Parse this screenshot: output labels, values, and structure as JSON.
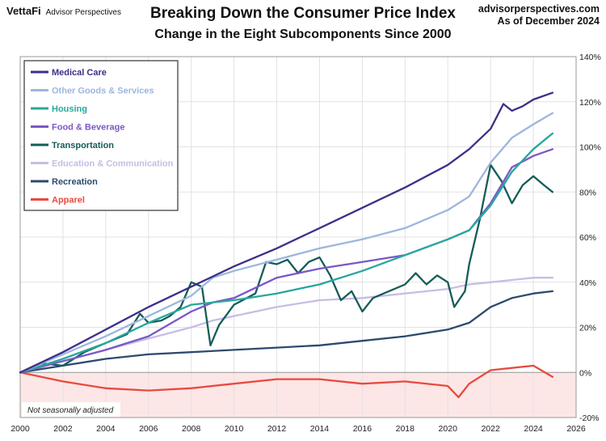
{
  "header": {
    "brand": "VettaFi",
    "brand_sub": "Advisor Perspectives",
    "title": "Breaking Down the Consumer Price Index",
    "subtitle": "Change in the Eight Subcomponents Since 2000",
    "site": "advisorperspectives.com",
    "asof": "As of December 2024"
  },
  "chart_data": {
    "type": "line",
    "title": "Breaking Down the Consumer Price Index",
    "subtitle": "Change in the Eight Subcomponents Since 2000",
    "xlim": [
      2000,
      2026
    ],
    "ylim": [
      -20,
      140
    ],
    "x_ticks": [
      2000,
      2002,
      2004,
      2006,
      2008,
      2010,
      2012,
      2014,
      2016,
      2018,
      2020,
      2022,
      2024,
      2026
    ],
    "y_ticks": [
      -20,
      0,
      20,
      40,
      60,
      80,
      100,
      120,
      140
    ],
    "y_tick_labels": [
      "-20%",
      "0%",
      "20%",
      "40%",
      "60%",
      "80%",
      "100%",
      "120%",
      "140%"
    ],
    "y_axis_side": "right",
    "grid": true,
    "legend_position": "top-left",
    "note": "Not seasonally adjusted",
    "series": [
      {
        "name": "Medical Care",
        "color": "#3d2f8a",
        "x": [
          2000,
          2002,
          2004,
          2006,
          2008,
          2010,
          2012,
          2014,
          2016,
          2018,
          2020,
          2021,
          2022,
          2022.6,
          2023,
          2023.5,
          2024,
          2024.9
        ],
        "values": [
          0,
          9,
          19,
          29,
          38,
          47,
          55,
          64,
          73,
          82,
          92,
          99,
          108,
          119,
          116,
          118,
          121,
          124
        ]
      },
      {
        "name": "Other Goods & Services",
        "color": "#9db6dd",
        "x": [
          2000,
          2002,
          2004,
          2006,
          2008,
          2009,
          2010,
          2012,
          2014,
          2016,
          2018,
          2020,
          2021,
          2022,
          2023,
          2024,
          2024.9
        ],
        "values": [
          0,
          8,
          16,
          25,
          34,
          42,
          45,
          50,
          55,
          59,
          64,
          72,
          78,
          93,
          104,
          110,
          115
        ]
      },
      {
        "name": "Housing",
        "color": "#28a79e",
        "x": [
          2000,
          2002,
          2004,
          2006,
          2008,
          2010,
          2012,
          2014,
          2016,
          2018,
          2020,
          2021,
          2022,
          2023,
          2024,
          2024.9
        ],
        "values": [
          0,
          6,
          13,
          22,
          30,
          32,
          35,
          39,
          45,
          52,
          59,
          63,
          74,
          89,
          99,
          106
        ]
      },
      {
        "name": "Food & Beverage",
        "color": "#7b58c6",
        "x": [
          2000,
          2002,
          2004,
          2006,
          2008,
          2009,
          2010,
          2012,
          2014,
          2016,
          2018,
          2020,
          2021,
          2022,
          2023,
          2024,
          2024.9
        ],
        "values": [
          0,
          5,
          10,
          16,
          27,
          31,
          33,
          42,
          46,
          49,
          52,
          59,
          63,
          75,
          91,
          96,
          99
        ]
      },
      {
        "name": "Transportation",
        "color": "#155c58",
        "x": [
          2000,
          2001,
          2002,
          2003,
          2004,
          2005,
          2005.6,
          2006,
          2006.6,
          2007,
          2007.5,
          2008,
          2008.5,
          2008.9,
          2009.3,
          2010,
          2011,
          2011.5,
          2012,
          2012.5,
          2013,
          2013.5,
          2014,
          2014.5,
          2015,
          2015.5,
          2016,
          2016.5,
          2017,
          2018,
          2018.5,
          2019,
          2019.5,
          2020,
          2020.3,
          2020.8,
          2021,
          2021.5,
          2022,
          2022.5,
          2023,
          2023.5,
          2024,
          2024.5,
          2024.9
        ],
        "values": [
          0,
          4,
          3,
          9,
          13,
          17,
          26,
          22,
          23,
          25,
          29,
          40,
          38,
          12,
          21,
          30,
          35,
          49,
          48,
          50,
          44,
          49,
          51,
          43,
          32,
          36,
          27,
          33,
          35,
          39,
          44,
          39,
          43,
          40,
          29,
          36,
          48,
          68,
          92,
          85,
          75,
          83,
          87,
          83,
          80
        ]
      },
      {
        "name": "Education & Communication",
        "color": "#c7bde4",
        "x": [
          2000,
          2002,
          2004,
          2006,
          2008,
          2009,
          2010,
          2012,
          2014,
          2016,
          2018,
          2020,
          2021,
          2022,
          2023,
          2024,
          2024.9
        ],
        "values": [
          0,
          5,
          10,
          15,
          20,
          23,
          25,
          29,
          32,
          33,
          35,
          37,
          39,
          40,
          41,
          42,
          42
        ]
      },
      {
        "name": "Recreation",
        "color": "#2d4a6e",
        "x": [
          2000,
          2002,
          2004,
          2006,
          2008,
          2010,
          2012,
          2014,
          2016,
          2018,
          2020,
          2021,
          2022,
          2023,
          2024,
          2024.9
        ],
        "values": [
          0,
          3,
          6,
          8,
          9,
          10,
          11,
          12,
          14,
          16,
          19,
          22,
          29,
          33,
          35,
          36
        ]
      },
      {
        "name": "Apparel",
        "color": "#e84a3f",
        "x": [
          2000,
          2002,
          2004,
          2006,
          2008,
          2010,
          2012,
          2014,
          2016,
          2018,
          2020,
          2020.5,
          2021,
          2022,
          2023,
          2024,
          2024.9
        ],
        "values": [
          0,
          -4,
          -7,
          -8,
          -7,
          -5,
          -3,
          -3,
          -5,
          -4,
          -6,
          -11,
          -5,
          1,
          2,
          3,
          -2
        ]
      }
    ]
  }
}
